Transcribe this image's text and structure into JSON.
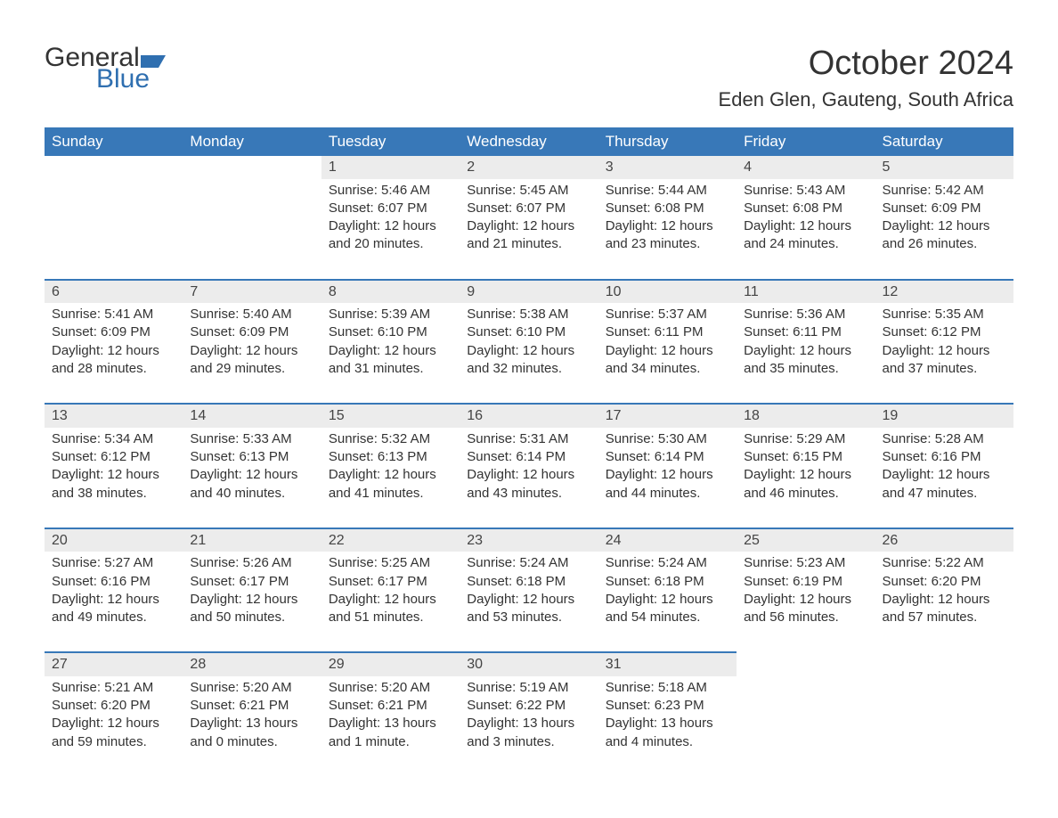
{
  "brand": {
    "part1": "General",
    "part2": "Blue",
    "flag_color": "#2f6fb0"
  },
  "header": {
    "month_title": "October 2024",
    "location": "Eden Glen, Gauteng, South Africa"
  },
  "colors": {
    "header_bg": "#3878b8",
    "header_text": "#ffffff",
    "daynum_bg": "#ececec",
    "row_border": "#3878b8",
    "body_text": "#333333",
    "page_bg": "#ffffff"
  },
  "typography": {
    "month_title_fontsize": 38,
    "location_fontsize": 22,
    "weekday_fontsize": 17,
    "cell_fontsize": 15
  },
  "calendar": {
    "type": "table",
    "columns": [
      "Sunday",
      "Monday",
      "Tuesday",
      "Wednesday",
      "Thursday",
      "Friday",
      "Saturday"
    ],
    "weeks": [
      [
        null,
        null,
        {
          "day": "1",
          "sunrise": "5:46 AM",
          "sunset": "6:07 PM",
          "daylight": "12 hours and 20 minutes."
        },
        {
          "day": "2",
          "sunrise": "5:45 AM",
          "sunset": "6:07 PM",
          "daylight": "12 hours and 21 minutes."
        },
        {
          "day": "3",
          "sunrise": "5:44 AM",
          "sunset": "6:08 PM",
          "daylight": "12 hours and 23 minutes."
        },
        {
          "day": "4",
          "sunrise": "5:43 AM",
          "sunset": "6:08 PM",
          "daylight": "12 hours and 24 minutes."
        },
        {
          "day": "5",
          "sunrise": "5:42 AM",
          "sunset": "6:09 PM",
          "daylight": "12 hours and 26 minutes."
        }
      ],
      [
        {
          "day": "6",
          "sunrise": "5:41 AM",
          "sunset": "6:09 PM",
          "daylight": "12 hours and 28 minutes."
        },
        {
          "day": "7",
          "sunrise": "5:40 AM",
          "sunset": "6:09 PM",
          "daylight": "12 hours and 29 minutes."
        },
        {
          "day": "8",
          "sunrise": "5:39 AM",
          "sunset": "6:10 PM",
          "daylight": "12 hours and 31 minutes."
        },
        {
          "day": "9",
          "sunrise": "5:38 AM",
          "sunset": "6:10 PM",
          "daylight": "12 hours and 32 minutes."
        },
        {
          "day": "10",
          "sunrise": "5:37 AM",
          "sunset": "6:11 PM",
          "daylight": "12 hours and 34 minutes."
        },
        {
          "day": "11",
          "sunrise": "5:36 AM",
          "sunset": "6:11 PM",
          "daylight": "12 hours and 35 minutes."
        },
        {
          "day": "12",
          "sunrise": "5:35 AM",
          "sunset": "6:12 PM",
          "daylight": "12 hours and 37 minutes."
        }
      ],
      [
        {
          "day": "13",
          "sunrise": "5:34 AM",
          "sunset": "6:12 PM",
          "daylight": "12 hours and 38 minutes."
        },
        {
          "day": "14",
          "sunrise": "5:33 AM",
          "sunset": "6:13 PM",
          "daylight": "12 hours and 40 minutes."
        },
        {
          "day": "15",
          "sunrise": "5:32 AM",
          "sunset": "6:13 PM",
          "daylight": "12 hours and 41 minutes."
        },
        {
          "day": "16",
          "sunrise": "5:31 AM",
          "sunset": "6:14 PM",
          "daylight": "12 hours and 43 minutes."
        },
        {
          "day": "17",
          "sunrise": "5:30 AM",
          "sunset": "6:14 PM",
          "daylight": "12 hours and 44 minutes."
        },
        {
          "day": "18",
          "sunrise": "5:29 AM",
          "sunset": "6:15 PM",
          "daylight": "12 hours and 46 minutes."
        },
        {
          "day": "19",
          "sunrise": "5:28 AM",
          "sunset": "6:16 PM",
          "daylight": "12 hours and 47 minutes."
        }
      ],
      [
        {
          "day": "20",
          "sunrise": "5:27 AM",
          "sunset": "6:16 PM",
          "daylight": "12 hours and 49 minutes."
        },
        {
          "day": "21",
          "sunrise": "5:26 AM",
          "sunset": "6:17 PM",
          "daylight": "12 hours and 50 minutes."
        },
        {
          "day": "22",
          "sunrise": "5:25 AM",
          "sunset": "6:17 PM",
          "daylight": "12 hours and 51 minutes."
        },
        {
          "day": "23",
          "sunrise": "5:24 AM",
          "sunset": "6:18 PM",
          "daylight": "12 hours and 53 minutes."
        },
        {
          "day": "24",
          "sunrise": "5:24 AM",
          "sunset": "6:18 PM",
          "daylight": "12 hours and 54 minutes."
        },
        {
          "day": "25",
          "sunrise": "5:23 AM",
          "sunset": "6:19 PM",
          "daylight": "12 hours and 56 minutes."
        },
        {
          "day": "26",
          "sunrise": "5:22 AM",
          "sunset": "6:20 PM",
          "daylight": "12 hours and 57 minutes."
        }
      ],
      [
        {
          "day": "27",
          "sunrise": "5:21 AM",
          "sunset": "6:20 PM",
          "daylight": "12 hours and 59 minutes."
        },
        {
          "day": "28",
          "sunrise": "5:20 AM",
          "sunset": "6:21 PM",
          "daylight": "13 hours and 0 minutes."
        },
        {
          "day": "29",
          "sunrise": "5:20 AM",
          "sunset": "6:21 PM",
          "daylight": "13 hours and 1 minute."
        },
        {
          "day": "30",
          "sunrise": "5:19 AM",
          "sunset": "6:22 PM",
          "daylight": "13 hours and 3 minutes."
        },
        {
          "day": "31",
          "sunrise": "5:18 AM",
          "sunset": "6:23 PM",
          "daylight": "13 hours and 4 minutes."
        },
        null,
        null
      ]
    ],
    "labels": {
      "sunrise": "Sunrise:",
      "sunset": "Sunset:",
      "daylight": "Daylight:"
    }
  }
}
